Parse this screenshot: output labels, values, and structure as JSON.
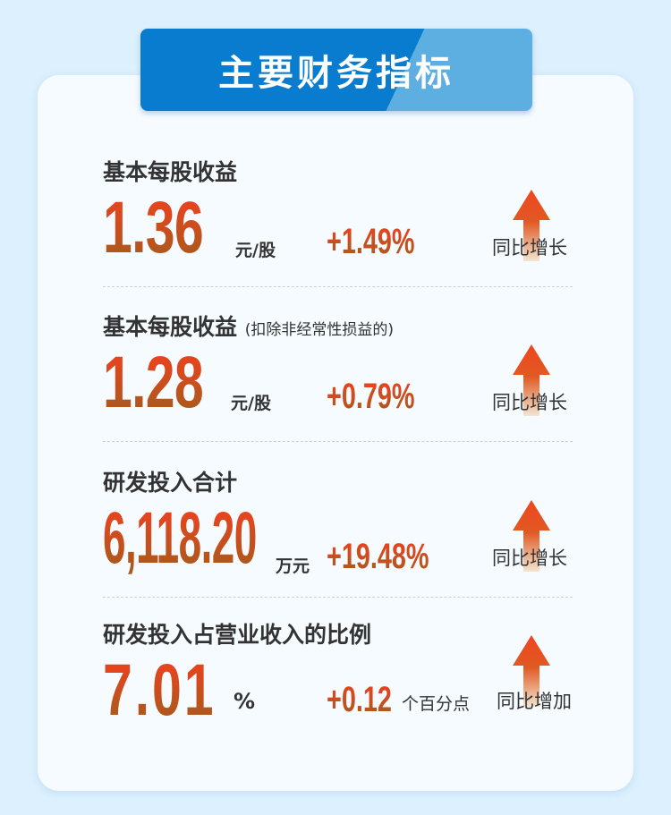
{
  "header": {
    "title": "主要财务指标"
  },
  "colors": {
    "accent_blue": "#0a7ccf",
    "value_top": "#f2401f",
    "value_bottom": "#a35c1c"
  },
  "metrics": [
    {
      "label": "基本每股收益",
      "note": "",
      "value": "1.36",
      "unit": "元/股",
      "change": "+1.49%",
      "change_unit": "",
      "trend": "同比增长",
      "icon": "arrow-up-icon"
    },
    {
      "label": "基本每股收益",
      "note": "(扣除非经常性损益的)",
      "value": "1.28",
      "unit": "元/股",
      "change": "+0.79%",
      "change_unit": "",
      "trend": "同比增长",
      "icon": "arrow-up-icon"
    },
    {
      "label": "研发投入合计",
      "note": "",
      "value": "6,118.20",
      "unit": "万元",
      "change": "+19.48%",
      "change_unit": "",
      "trend": "同比增长",
      "icon": "arrow-up-icon"
    },
    {
      "label": "研发投入占营业收入的比例",
      "note": "",
      "value": "7.01",
      "unit": "%",
      "change": "+0.12",
      "change_unit": "个百分点",
      "trend": "同比增加",
      "icon": "arrow-up-icon"
    }
  ]
}
